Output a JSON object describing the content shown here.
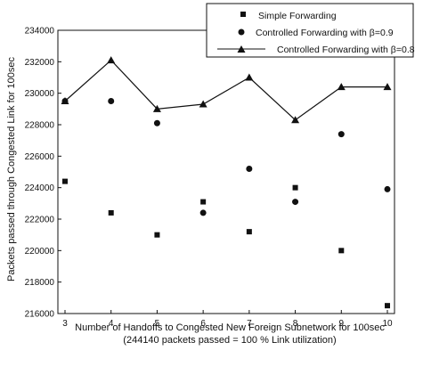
{
  "chart_data": {
    "type": "scatter",
    "xlabel": "Number of Handoffs to Congested New Foreign Subnetwork for 100sec",
    "xlabel_sub": "(244140 packets passed = 100 % Link utilization)",
    "ylabel": "Packets passed through Congested Link for 100sec",
    "x": [
      3,
      4,
      5,
      6,
      7,
      8,
      9,
      10
    ],
    "x_ticks": [
      "3",
      "4",
      "5",
      "6",
      "7",
      "8",
      "9",
      "10"
    ],
    "xlim": [
      3,
      10
    ],
    "ylim": [
      216000,
      234000
    ],
    "y_ticks": [
      "216000",
      "218000",
      "220000",
      "222000",
      "224000",
      "226000",
      "228000",
      "230000",
      "232000",
      "234000"
    ],
    "grid": false,
    "legend_position": "top-right",
    "series": [
      {
        "name": "Simple Forwarding",
        "marker": "square",
        "line": false,
        "values": [
          224400,
          222400,
          221000,
          223100,
          221200,
          224000,
          220000,
          216500
        ]
      },
      {
        "name": "Controlled Forwarding with β=0.9",
        "marker": "circle",
        "line": false,
        "values": [
          229500,
          229500,
          228100,
          222400,
          225200,
          223100,
          227400,
          223900
        ]
      },
      {
        "name": "Controlled Forwarding with β=0.8",
        "marker": "triangle",
        "line": true,
        "values": [
          229500,
          232100,
          229000,
          229300,
          231000,
          228300,
          230400,
          230400
        ]
      }
    ],
    "colors": {
      "ink": "#111111",
      "background": "#ffffff"
    }
  }
}
